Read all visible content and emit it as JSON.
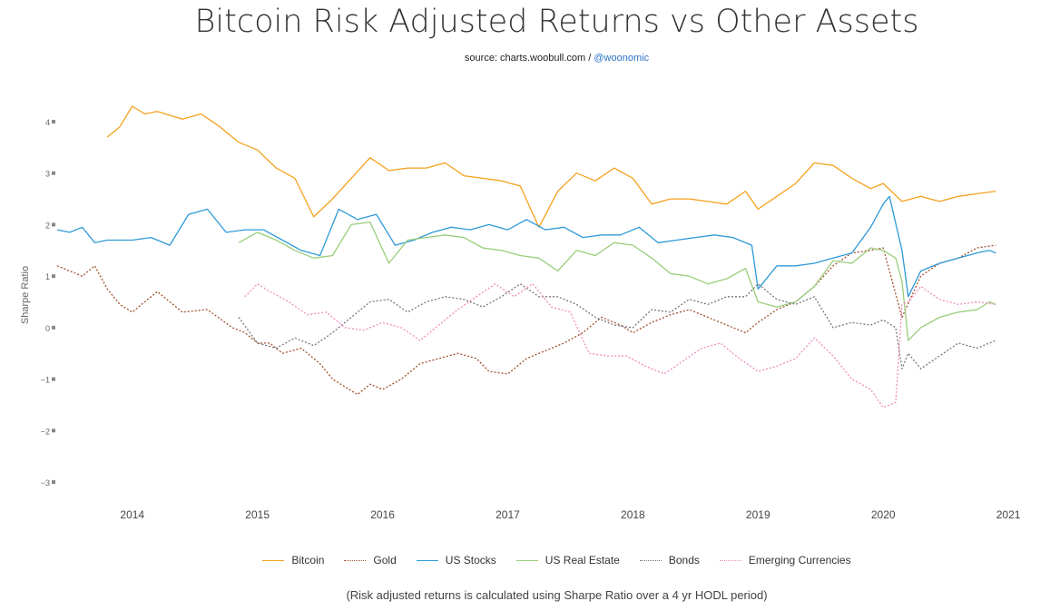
{
  "header": {
    "title": "Bitcoin Risk Adjusted Returns vs Other Assets",
    "source_prefix": "source: charts.woobull.com /",
    "source_handle": "@woonomic"
  },
  "footnote": "(Risk adjusted returns is calculated using Sharpe Ratio over a 4 yr HODL period)",
  "chart_data": {
    "type": "line",
    "title": "Bitcoin Risk Adjusted Returns vs Other Assets",
    "subtitle": "source: charts.woobull.com / @woonomic",
    "xlabel": "",
    "ylabel": "Sharpe Ratio",
    "xlim": [
      2013.4,
      2021.05
    ],
    "ylim": [
      -3.3,
      4.6
    ],
    "x_ticks": [
      2014,
      2015,
      2016,
      2017,
      2018,
      2019,
      2020,
      2021
    ],
    "x_tick_labels": [
      "2014",
      "2015",
      "2016",
      "2017",
      "2018",
      "2019",
      "2020",
      "2021"
    ],
    "y_ticks": [
      4,
      3,
      2,
      1,
      0,
      -1,
      -2,
      -3
    ],
    "y_tick_labels": [
      "4",
      "3",
      "2",
      "1",
      "0",
      "−1",
      "−2",
      "−3"
    ],
    "grid": false,
    "legend_position": "bottom-center",
    "series": [
      {
        "name": "Bitcoin",
        "color": "#f5a11d",
        "dash": "solid",
        "x": [
          2013.8,
          2013.9,
          2014.0,
          2014.1,
          2014.2,
          2014.4,
          2014.55,
          2014.7,
          2014.85,
          2015.0,
          2015.15,
          2015.3,
          2015.45,
          2015.6,
          2015.75,
          2015.9,
          2016.05,
          2016.2,
          2016.35,
          2016.5,
          2016.65,
          2016.8,
          2016.95,
          2017.1,
          2017.25,
          2017.4,
          2017.55,
          2017.7,
          2017.85,
          2018.0,
          2018.15,
          2018.3,
          2018.45,
          2018.6,
          2018.75,
          2018.9,
          2019.0,
          2019.15,
          2019.3,
          2019.45,
          2019.6,
          2019.75,
          2019.9,
          2020.0,
          2020.15,
          2020.3,
          2020.45,
          2020.6,
          2020.75,
          2020.9
        ],
        "y": [
          3.7,
          3.9,
          4.3,
          4.15,
          4.2,
          4.05,
          4.15,
          3.9,
          3.6,
          3.45,
          3.1,
          2.9,
          2.15,
          2.5,
          2.9,
          3.3,
          3.05,
          3.1,
          3.1,
          3.2,
          2.95,
          2.9,
          2.85,
          2.75,
          1.95,
          2.65,
          3.0,
          2.85,
          3.1,
          2.9,
          2.4,
          2.5,
          2.5,
          2.45,
          2.4,
          2.65,
          2.3,
          2.55,
          2.8,
          3.2,
          3.15,
          2.9,
          2.7,
          2.8,
          2.45,
          2.55,
          2.45,
          2.55,
          2.6,
          2.65
        ]
      },
      {
        "name": "Gold",
        "color": "#a0522d",
        "dash": "2,2",
        "x": [
          2013.4,
          2013.5,
          2013.6,
          2013.7,
          2013.8,
          2013.9,
          2014.0,
          2014.2,
          2014.4,
          2014.6,
          2014.8,
          2014.9,
          2015.0,
          2015.1,
          2015.2,
          2015.35,
          2015.5,
          2015.6,
          2015.7,
          2015.8,
          2015.9,
          2016.0,
          2016.15,
          2016.3,
          2016.45,
          2016.6,
          2016.75,
          2016.85,
          2017.0,
          2017.15,
          2017.3,
          2017.45,
          2017.6,
          2017.75,
          2017.9,
          2018.0,
          2018.15,
          2018.3,
          2018.45,
          2018.6,
          2018.75,
          2018.9,
          2019.0,
          2019.15,
          2019.3,
          2019.45,
          2019.6,
          2019.75,
          2019.9,
          2020.0,
          2020.15,
          2020.3,
          2020.45,
          2020.6,
          2020.75,
          2020.9
        ],
        "y": [
          1.2,
          1.1,
          1.0,
          1.2,
          0.75,
          0.45,
          0.3,
          0.7,
          0.3,
          0.35,
          0.0,
          -0.1,
          -0.3,
          -0.3,
          -0.5,
          -0.4,
          -0.7,
          -1.0,
          -1.15,
          -1.3,
          -1.1,
          -1.2,
          -1.0,
          -0.7,
          -0.6,
          -0.5,
          -0.6,
          -0.85,
          -0.9,
          -0.6,
          -0.45,
          -0.3,
          -0.1,
          0.2,
          0.05,
          -0.1,
          0.1,
          0.25,
          0.35,
          0.2,
          0.05,
          -0.1,
          0.1,
          0.35,
          0.5,
          0.8,
          1.2,
          1.45,
          1.5,
          1.55,
          0.2,
          1.0,
          1.25,
          1.35,
          1.55,
          1.6
        ]
      },
      {
        "name": "US Stocks",
        "color": "#2e9ad8",
        "dash": "solid",
        "x": [
          2013.4,
          2013.5,
          2013.6,
          2013.7,
          2013.8,
          2013.9,
          2014.0,
          2014.15,
          2014.3,
          2014.45,
          2014.6,
          2014.75,
          2014.9,
          2015.05,
          2015.2,
          2015.35,
          2015.5,
          2015.65,
          2015.8,
          2015.95,
          2016.1,
          2016.25,
          2016.4,
          2016.55,
          2016.7,
          2016.85,
          2017.0,
          2017.15,
          2017.3,
          2017.45,
          2017.6,
          2017.75,
          2017.9,
          2018.05,
          2018.2,
          2018.35,
          2018.5,
          2018.65,
          2018.8,
          2018.95,
          2019.0,
          2019.15,
          2019.3,
          2019.45,
          2019.6,
          2019.75,
          2019.9,
          2020.0,
          2020.05,
          2020.15,
          2020.2,
          2020.3,
          2020.45,
          2020.6,
          2020.75,
          2020.85,
          2020.9
        ],
        "y": [
          1.9,
          1.85,
          1.95,
          1.65,
          1.7,
          1.7,
          1.7,
          1.75,
          1.6,
          2.2,
          2.3,
          1.85,
          1.9,
          1.9,
          1.7,
          1.5,
          1.4,
          2.3,
          2.1,
          2.2,
          1.6,
          1.7,
          1.85,
          1.95,
          1.9,
          2.0,
          1.9,
          2.1,
          1.9,
          1.95,
          1.75,
          1.8,
          1.8,
          1.95,
          1.65,
          1.7,
          1.75,
          1.8,
          1.75,
          1.6,
          0.75,
          1.2,
          1.2,
          1.25,
          1.35,
          1.45,
          1.95,
          2.4,
          2.55,
          1.5,
          0.6,
          1.1,
          1.25,
          1.35,
          1.45,
          1.5,
          1.45
        ]
      },
      {
        "name": "US Real Estate",
        "color": "#9acd7b",
        "dash": "solid",
        "x": [
          2014.85,
          2015.0,
          2015.15,
          2015.3,
          2015.45,
          2015.6,
          2015.75,
          2015.9,
          2016.05,
          2016.2,
          2016.35,
          2016.5,
          2016.65,
          2016.8,
          2016.95,
          2017.1,
          2017.25,
          2017.4,
          2017.55,
          2017.7,
          2017.85,
          2018.0,
          2018.15,
          2018.3,
          2018.45,
          2018.6,
          2018.75,
          2018.9,
          2019.0,
          2019.15,
          2019.3,
          2019.45,
          2019.6,
          2019.75,
          2019.9,
          2020.0,
          2020.1,
          2020.15,
          2020.2,
          2020.3,
          2020.45,
          2020.6,
          2020.75,
          2020.85,
          2020.9
        ],
        "y": [
          1.65,
          1.85,
          1.7,
          1.5,
          1.35,
          1.4,
          2.0,
          2.05,
          1.25,
          1.7,
          1.75,
          1.8,
          1.75,
          1.55,
          1.5,
          1.4,
          1.35,
          1.1,
          1.5,
          1.4,
          1.65,
          1.6,
          1.35,
          1.05,
          1.0,
          0.85,
          0.95,
          1.15,
          0.5,
          0.4,
          0.5,
          0.8,
          1.3,
          1.25,
          1.55,
          1.5,
          1.35,
          0.9,
          -0.25,
          0.0,
          0.2,
          0.3,
          0.35,
          0.5,
          0.45
        ]
      },
      {
        "name": "Bonds",
        "color": "#777777",
        "dash": "2,2",
        "x": [
          2014.85,
          2015.0,
          2015.15,
          2015.3,
          2015.45,
          2015.6,
          2015.75,
          2015.9,
          2016.05,
          2016.2,
          2016.35,
          2016.5,
          2016.65,
          2016.8,
          2016.95,
          2017.1,
          2017.25,
          2017.4,
          2017.55,
          2017.7,
          2017.85,
          2018.0,
          2018.15,
          2018.3,
          2018.45,
          2018.6,
          2018.75,
          2018.9,
          2019.0,
          2019.15,
          2019.3,
          2019.45,
          2019.6,
          2019.75,
          2019.9,
          2020.0,
          2020.1,
          2020.15,
          2020.2,
          2020.3,
          2020.45,
          2020.6,
          2020.75,
          2020.9
        ],
        "y": [
          0.2,
          -0.3,
          -0.4,
          -0.2,
          -0.35,
          -0.1,
          0.2,
          0.5,
          0.55,
          0.3,
          0.5,
          0.6,
          0.55,
          0.4,
          0.6,
          0.85,
          0.6,
          0.6,
          0.45,
          0.2,
          0.05,
          0.0,
          0.35,
          0.3,
          0.55,
          0.45,
          0.6,
          0.6,
          0.85,
          0.55,
          0.45,
          0.6,
          0.0,
          0.1,
          0.05,
          0.15,
          0.0,
          -0.8,
          -0.5,
          -0.8,
          -0.55,
          -0.3,
          -0.4,
          -0.25
        ]
      },
      {
        "name": "Emerging Currencies",
        "color": "#f08cc0",
        "dash": "2,2",
        "x": [
          2014.9,
          2015.0,
          2015.1,
          2015.25,
          2015.4,
          2015.55,
          2015.7,
          2015.85,
          2016.0,
          2016.15,
          2016.3,
          2016.45,
          2016.6,
          2016.75,
          2016.9,
          2017.05,
          2017.2,
          2017.35,
          2017.5,
          2017.65,
          2017.8,
          2017.95,
          2018.1,
          2018.25,
          2018.4,
          2018.55,
          2018.7,
          2018.85,
          2019.0,
          2019.15,
          2019.3,
          2019.45,
          2019.6,
          2019.75,
          2019.9,
          2020.0,
          2020.1,
          2020.15,
          2020.2,
          2020.3,
          2020.45,
          2020.6,
          2020.75,
          2020.9
        ],
        "y": [
          0.6,
          0.85,
          0.7,
          0.5,
          0.25,
          0.3,
          0.0,
          -0.05,
          0.1,
          0.0,
          -0.25,
          0.05,
          0.35,
          0.6,
          0.85,
          0.6,
          0.85,
          0.4,
          0.3,
          -0.5,
          -0.55,
          -0.55,
          -0.75,
          -0.9,
          -0.65,
          -0.4,
          -0.3,
          -0.6,
          -0.85,
          -0.75,
          -0.6,
          -0.2,
          -0.55,
          -1.0,
          -1.2,
          -1.55,
          -1.45,
          0.45,
          0.5,
          0.8,
          0.55,
          0.45,
          0.5,
          0.45
        ]
      }
    ]
  }
}
